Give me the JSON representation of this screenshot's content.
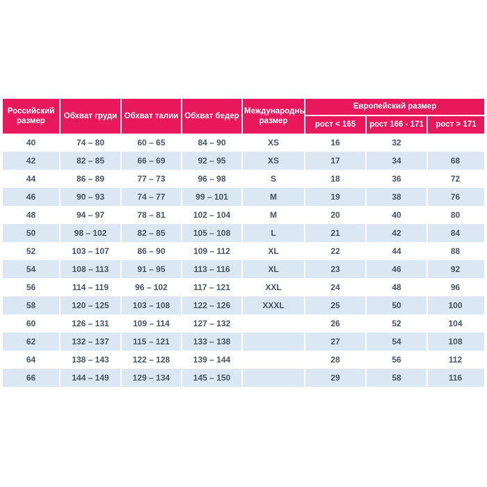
{
  "colors": {
    "header_bg": "#e9175c",
    "header_text": "#ffffff",
    "stripe_bg": "#dce7f4",
    "body_text": "#47545f",
    "page_bg": "#ffffff"
  },
  "chart_data": {
    "type": "table",
    "title": "",
    "header": {
      "russian_size": "Российский размер",
      "chest": "Обхват груди",
      "waist": "Обхват талии",
      "hips": "Обхват бедер",
      "international": "Международный размер",
      "european_group": "Европейский размер",
      "height_under_165": "рост < 165",
      "height_166_171": "рост 166 - 171",
      "height_over_171": "рост > 171"
    },
    "rows": [
      [
        "40",
        "74 – 80",
        "60 – 65",
        "84 – 90",
        "XS",
        "16",
        "32",
        ""
      ],
      [
        "42",
        "82 – 85",
        "66 – 69",
        "92 – 95",
        "XS",
        "17",
        "34",
        "68"
      ],
      [
        "44",
        "86 – 89",
        "77 – 73",
        "96 – 98",
        "S",
        "18",
        "36",
        "72"
      ],
      [
        "46",
        "90 – 93",
        "74 – 77",
        "99 – 101",
        "M",
        "19",
        "38",
        "76"
      ],
      [
        "48",
        "94 – 97",
        "78 – 81",
        "102 – 104",
        "M",
        "20",
        "40",
        "80"
      ],
      [
        "50",
        "98 – 102",
        "82 – 85",
        "105 – 108",
        "L",
        "21",
        "42",
        "84"
      ],
      [
        "52",
        "103 – 107",
        "86 – 90",
        "109 – 112",
        "XL",
        "22",
        "44",
        "88"
      ],
      [
        "54",
        "108 – 113",
        "91 – 95",
        "113 – 116",
        "XL",
        "23",
        "46",
        "92"
      ],
      [
        "56",
        "114 – 119",
        "96 – 102",
        "117 – 121",
        "XXL",
        "24",
        "48",
        "96"
      ],
      [
        "58",
        "120 – 125",
        "103 – 108",
        "122 – 126",
        "XXXL",
        "25",
        "50",
        "100"
      ],
      [
        "60",
        "126 – 131",
        "109 – 114",
        "127 – 132",
        "",
        "26",
        "52",
        "104"
      ],
      [
        "62",
        "132 – 137",
        "115 – 121",
        "133 – 138",
        "",
        "27",
        "54",
        "108"
      ],
      [
        "64",
        "138 – 143",
        "122 – 128",
        "139 – 144",
        "",
        "28",
        "56",
        "112"
      ],
      [
        "66",
        "144 – 149",
        "129 – 134",
        "145 – 150",
        "",
        "29",
        "58",
        "116"
      ]
    ]
  }
}
